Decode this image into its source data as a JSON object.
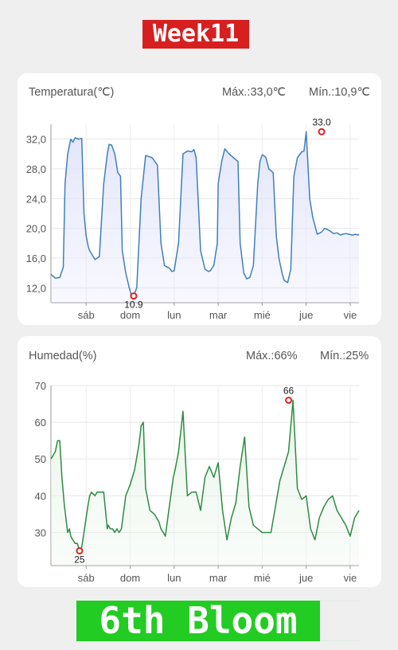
{
  "header": {
    "week_label": "Week11"
  },
  "footer": {
    "bloom_label": "6th Bloom"
  },
  "temperature": {
    "title": "Temperatura(℃)",
    "max_label": "Máx.:33,0℃",
    "min_label": "Mín.:10,9℃"
  },
  "humidity": {
    "title": "Humedad(%)",
    "max_label": "Máx.:66%",
    "min_label": "Mín.:25%"
  },
  "colors": {
    "temp_line": "#3f7fbf",
    "temp_fill": "#e3e6fb",
    "hum_line": "#2e8b43",
    "hum_fill": "#eaf5ea",
    "marker": "#e02020",
    "week_badge": "#d71f1f",
    "bloom_badge": "#22cc22"
  },
  "chart_data": [
    {
      "type": "area",
      "ylim": [
        10,
        34
      ],
      "xlim": [
        0,
        7
      ],
      "y_ticks": [
        "12,0",
        "16,0",
        "20,0",
        "24,0",
        "28,0",
        "32,0"
      ],
      "y_tick_values": [
        12,
        16,
        20,
        24,
        28,
        32
      ],
      "x_ticks": [
        "sáb",
        "dom",
        "lun",
        "mar",
        "mié",
        "jue",
        "vie"
      ],
      "x_tick_values": [
        0.8,
        1.8,
        2.8,
        3.8,
        4.8,
        5.8,
        6.8
      ],
      "grid": true,
      "x": [
        0,
        0.1,
        0.2,
        0.28,
        0.32,
        0.38,
        0.45,
        0.5,
        0.55,
        0.62,
        0.7,
        0.75,
        0.8,
        0.85,
        0.88,
        0.92,
        1.0,
        1.1,
        1.2,
        1.28,
        1.32,
        1.38,
        1.45,
        1.52,
        1.58,
        1.62,
        1.7,
        1.78,
        1.82,
        1.88,
        1.95,
        2.05,
        2.12,
        2.15,
        2.2,
        2.3,
        2.42,
        2.5,
        2.58,
        2.64,
        2.7,
        2.75,
        2.8,
        2.9,
        3.0,
        3.1,
        3.2,
        3.25,
        3.3,
        3.4,
        3.5,
        3.58,
        3.62,
        3.7,
        3.78,
        3.8,
        3.88,
        3.95,
        4.05,
        4.15,
        4.25,
        4.3,
        4.38,
        4.45,
        4.52,
        4.6,
        4.7,
        4.75,
        4.8,
        4.88,
        4.95,
        5.05,
        5.12,
        5.18,
        5.25,
        5.3,
        5.38,
        5.45,
        5.52,
        5.6,
        5.7,
        5.75,
        5.8,
        5.88,
        5.95,
        6.05,
        6.15,
        6.22,
        6.3,
        6.35,
        6.42,
        6.5,
        6.58,
        6.62,
        6.7,
        6.78,
        6.85,
        6.92,
        6.97,
        7.0
      ],
      "y": [
        13.8,
        13.3,
        13.4,
        14.8,
        26,
        30,
        32,
        31.6,
        32.2,
        32,
        32.1,
        22,
        19,
        17.5,
        17,
        16.6,
        15.8,
        16.2,
        26,
        30,
        31.3,
        31.2,
        30,
        27.5,
        27,
        17,
        14,
        12,
        11.2,
        10.9,
        12,
        24,
        28,
        29.8,
        29.7,
        29.5,
        28.5,
        18,
        15,
        14.8,
        14.6,
        14.2,
        14.3,
        18,
        30,
        30.4,
        30.3,
        30.6,
        29.5,
        17,
        14.5,
        14.2,
        14.3,
        15,
        18,
        26,
        29,
        30.7,
        30,
        29.5,
        29,
        18,
        14,
        13.2,
        13.4,
        15,
        26,
        29,
        29.9,
        29.6,
        28,
        27.5,
        19,
        16,
        14,
        13,
        12.7,
        14.5,
        27,
        29.5,
        30.3,
        30.4,
        33,
        24,
        21.5,
        19.2,
        19.5,
        20,
        19.8,
        19.6,
        19.3,
        19.4,
        19.1,
        19.2,
        19.3,
        19.2,
        19.1,
        19.2,
        19.1,
        19.2
      ],
      "annotations": [
        {
          "label": "33.0",
          "x": 6.15,
          "y": 33.0,
          "position": "above"
        },
        {
          "label": "10.9",
          "x": 1.88,
          "y": 10.9,
          "position": "below"
        }
      ]
    },
    {
      "type": "area",
      "ylim": [
        21,
        70
      ],
      "xlim": [
        0,
        7
      ],
      "y_ticks": [
        "30",
        "40",
        "50",
        "60",
        "70"
      ],
      "y_tick_values": [
        30,
        40,
        50,
        60,
        70
      ],
      "x_ticks": [
        "sáb",
        "dom",
        "lun",
        "mar",
        "mié",
        "jue",
        "vie"
      ],
      "x_tick_values": [
        0.8,
        1.8,
        2.8,
        3.8,
        4.8,
        5.8,
        6.8
      ],
      "grid": true,
      "x": [
        0,
        0.05,
        0.1,
        0.15,
        0.2,
        0.25,
        0.3,
        0.35,
        0.38,
        0.42,
        0.45,
        0.5,
        0.55,
        0.6,
        0.65,
        0.7,
        0.75,
        0.8,
        0.85,
        0.88,
        0.92,
        1.0,
        1.05,
        1.12,
        1.2,
        1.28,
        1.3,
        1.35,
        1.4,
        1.45,
        1.5,
        1.55,
        1.6,
        1.7,
        1.8,
        1.9,
        2.0,
        2.05,
        2.1,
        2.15,
        2.25,
        2.35,
        2.45,
        2.5,
        2.6,
        2.7,
        2.78,
        2.82,
        2.9,
        3.0,
        3.1,
        3.2,
        3.3,
        3.4,
        3.5,
        3.6,
        3.7,
        3.8,
        3.9,
        4.0,
        4.1,
        4.2,
        4.3,
        4.4,
        4.5,
        4.6,
        4.7,
        4.8,
        4.9,
        5.0,
        5.1,
        5.2,
        5.3,
        5.4,
        5.5,
        5.6,
        5.7,
        5.8,
        5.9,
        6.0,
        6.1,
        6.2,
        6.3,
        6.4,
        6.5,
        6.6,
        6.7,
        6.8,
        6.9,
        7.0
      ],
      "y": [
        50,
        51,
        52,
        55,
        55,
        45,
        38,
        33,
        30,
        31,
        29,
        28,
        27,
        27,
        25,
        26,
        30,
        34,
        38,
        40,
        41,
        40,
        41,
        41,
        41,
        31,
        32,
        31,
        31,
        30,
        31,
        30,
        31,
        40,
        43,
        47,
        54,
        59,
        60,
        42,
        36,
        35,
        33,
        31,
        29,
        38,
        45,
        47,
        52,
        63,
        40,
        41,
        41,
        36,
        45,
        48,
        45,
        49,
        36,
        28,
        34,
        38,
        48,
        56,
        37,
        32,
        31,
        30,
        30,
        30,
        37,
        44,
        48,
        52,
        66,
        42,
        39,
        40,
        31,
        28,
        34,
        37,
        39,
        40,
        36,
        34,
        32,
        29,
        34,
        36
      ],
      "annotations": [
        {
          "label": "66",
          "x": 5.4,
          "y": 66,
          "position": "above"
        },
        {
          "label": "25",
          "x": 0.65,
          "y": 25,
          "position": "below"
        }
      ]
    }
  ]
}
